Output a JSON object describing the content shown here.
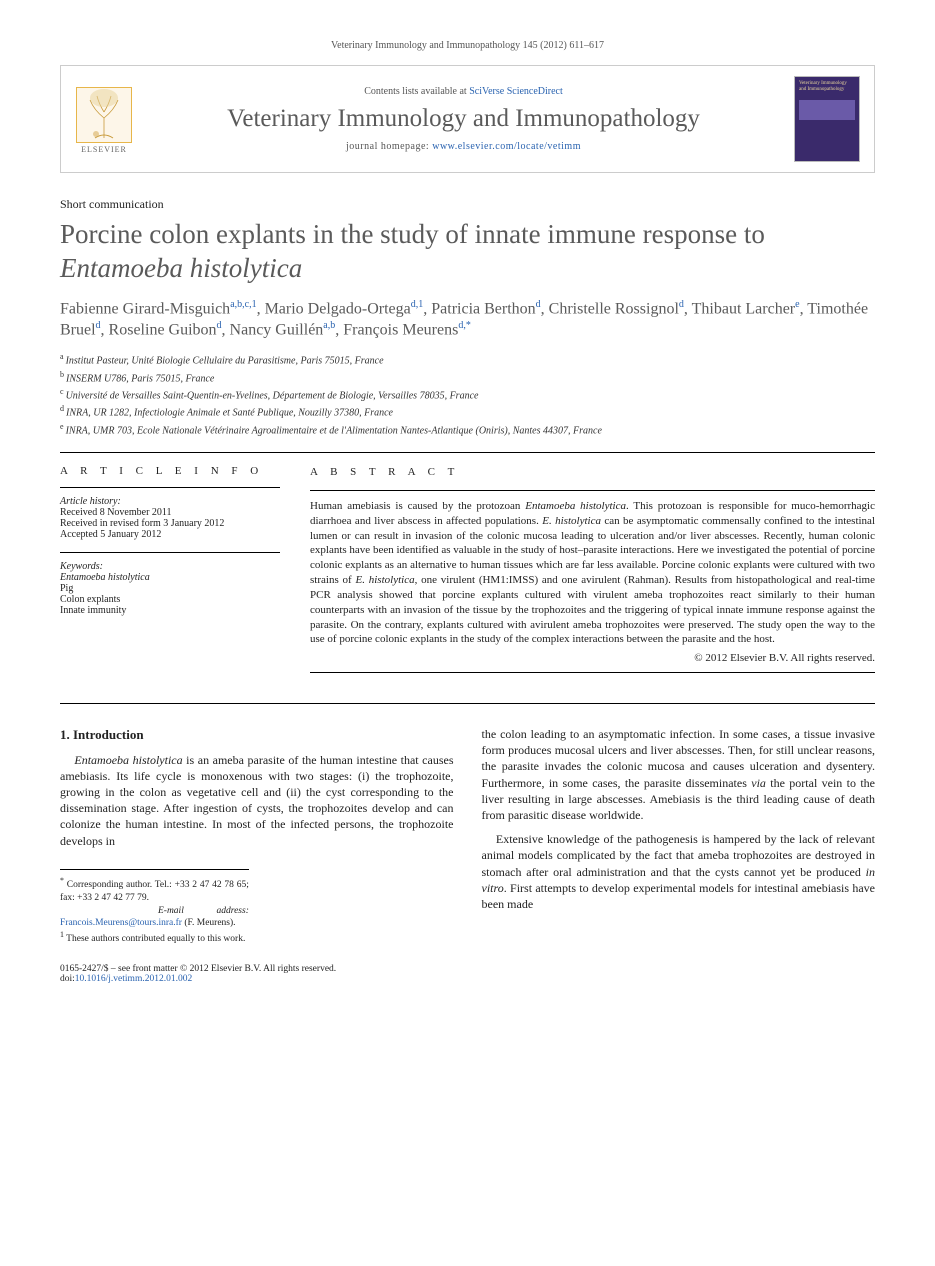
{
  "page_header": "Veterinary Immunology and Immunopathology 145 (2012) 611–617",
  "masthead": {
    "contents_prefix": "Contents lists available at ",
    "contents_link": "SciVerse ScienceDirect",
    "journal_title": "Veterinary Immunology and Immunopathology",
    "homepage_prefix": "journal homepage: ",
    "homepage_url": "www.elsevier.com/locate/vetimm",
    "publisher_word": "ELSEVIER",
    "cover_text": "Veterinary Immunology and Immunopathology"
  },
  "colors": {
    "link": "#2a63b0",
    "title_gray": "#5a5a5a",
    "rule": "#000000",
    "border": "#cccccc",
    "elsevier_fill": "#fdf6e9",
    "elsevier_stroke": "#e7b64a",
    "cover_bg": "#3a2a6b",
    "cover_band": "#6a5aa8",
    "cover_text": "#e7d49c"
  },
  "article_type": "Short communication",
  "title_pre": "Porcine colon explants in the study of innate immune response to ",
  "title_species": "Entamoeba histolytica",
  "authors_html": "Fabienne Girard-Misguich|a,b,c,1|, Mario Delgado-Ortega|d,1|, Patricia Berthon|d|, Christelle Rossignol|d|, Thibaut Larcher|e|, Timothée Bruel|d|, Roseline Guibon|d|, Nancy Guillén|a,b|, François Meurens|d,*|",
  "affiliations": [
    {
      "key": "a",
      "text": "Institut Pasteur, Unité Biologie Cellulaire du Parasitisme, Paris 75015, France"
    },
    {
      "key": "b",
      "text": "INSERM U786, Paris 75015, France"
    },
    {
      "key": "c",
      "text": "Université de Versailles Saint-Quentin-en-Yvelines, Département de Biologie, Versailles 78035, France"
    },
    {
      "key": "d",
      "text": "INRA, UR 1282, Infectiologie Animale et Santé Publique, Nouzilly 37380, France"
    },
    {
      "key": "e",
      "text": "INRA, UMR 703, Ecole Nationale Vétérinaire Agroalimentaire et de l'Alimentation Nantes-Atlantique (Oniris), Nantes 44307, France"
    }
  ],
  "info": {
    "heading": "A R T I C L E   I N F O",
    "history_head": "Article history:",
    "history": [
      "Received 8 November 2011",
      "Received in revised form 3 January 2012",
      "Accepted 5 January 2012"
    ],
    "keywords_head": "Keywords:",
    "keywords": [
      "Entamoeba histolytica",
      "Pig",
      "Colon explants",
      "Innate immunity"
    ]
  },
  "abstract": {
    "heading": "A B S T R A C T",
    "text_1": "Human amebiasis is caused by the protozoan ",
    "sp1": "Entamoeba histolytica",
    "text_2": ". This protozoan is responsible for muco-hemorrhagic diarrhoea and liver abscess in affected populations. ",
    "sp2": "E. histolytica",
    "text_3": " can be asymptomatic commensally confined to the intestinal lumen or can result in invasion of the colonic mucosa leading to ulceration and/or liver abscesses. Recently, human colonic explants have been identified as valuable in the study of host–parasite interactions. Here we investigated the potential of porcine colonic explants as an alternative to human tissues which are far less available. Porcine colonic explants were cultured with two strains of ",
    "sp3": "E. histolytica",
    "text_4": ", one virulent (HM1:IMSS) and one avirulent (Rahman). Results from histopathological and real-time PCR analysis showed that porcine explants cultured with virulent ameba trophozoites react similarly to their human counterparts with an invasion of the tissue by the trophozoites and the triggering of typical innate immune response against the parasite. On the contrary, explants cultured with avirulent ameba trophozoites were preserved. The study open the way to the use of porcine colonic explants in the study of the complex interactions between the parasite and the host.",
    "copyright": "© 2012 Elsevier B.V. All rights reserved."
  },
  "body": {
    "section_heading": "1.  Introduction",
    "p1_sp": "Entamoeba histolytica",
    "p1": " is an ameba parasite of the human intestine that causes amebiasis. Its life cycle is monoxenous with two stages: (i) the trophozoite, growing in the colon as vegetative cell and (ii) the cyst corresponding to the dissemination stage. After ingestion of cysts, the trophozoites develop and can colonize the human intestine. In most of the infected persons, the trophozoite develops in",
    "p2_a": "the colon leading to an asymptomatic infection. In some cases, a tissue invasive form produces mucosal ulcers and liver abscesses. Then, for still unclear reasons, the parasite invades the colonic mucosa and causes ulceration and dysentery. Furthermore, in some cases, the parasite disseminates ",
    "p2_via": "via",
    "p2_b": " the portal vein to the liver resulting in large abscesses. Amebiasis is the third leading cause of death from parasitic disease worldwide.",
    "p3_a": "Extensive knowledge of the pathogenesis is hampered by the lack of relevant animal models complicated by the fact that ameba trophozoites are destroyed in stomach after oral administration and that the cysts cannot yet be produced ",
    "p3_invitro": "in vitro",
    "p3_b": ". First attempts to develop experimental models for intestinal amebiasis have been made"
  },
  "footnotes": {
    "corr_symbol": "*",
    "corr_text": "Corresponding author. Tel.: +33 2 47 42 78 65; fax: +33 2 47 42 77 79.",
    "email_label": "E-mail address:",
    "email": "Francois.Meurens@tours.inra.fr",
    "email_tail": " (F. Meurens).",
    "shared_symbol": "1",
    "shared_text": "These authors contributed equally to this work."
  },
  "footer": {
    "issn_line": "0165-2427/$ – see front matter © 2012 Elsevier B.V. All rights reserved.",
    "doi_label": "doi:",
    "doi": "10.1016/j.vetimm.2012.01.002"
  }
}
